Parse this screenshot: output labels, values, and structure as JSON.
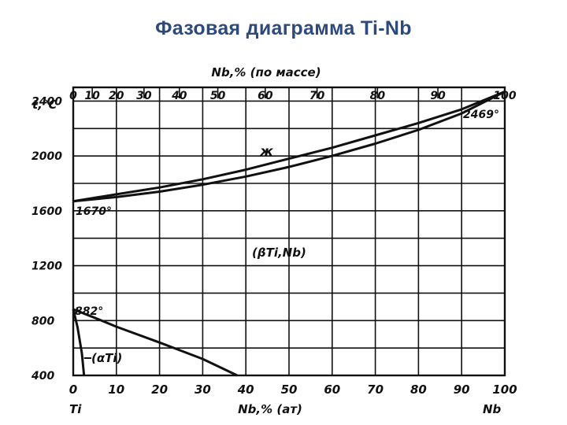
{
  "slide": {
    "title": "Фазовая диаграмма Ti-Nb"
  },
  "diagram": {
    "top_axis_title": "Nb,% (по массе)",
    "top_ticks": [
      "0",
      "10",
      "20",
      "30",
      "40",
      "50",
      "60",
      "70",
      "80",
      "90",
      "100"
    ],
    "top_tick_positions_at": [
      0,
      4.4,
      10,
      16.4,
      24.6,
      33.5,
      44.5,
      56.5,
      70.5,
      84.5,
      100
    ],
    "left_axis_title": "t,°C",
    "left_ticks": [
      "2400",
      "2000",
      "1600",
      "1200",
      "800",
      "400"
    ],
    "bottom_ticks": [
      "0",
      "10",
      "20",
      "30",
      "40",
      "50",
      "60",
      "70",
      "80",
      "90",
      "100"
    ],
    "bottom_axis_title": "Nb,% (ат)",
    "bottom_left_element": "Ti",
    "bottom_right_element": "Nb",
    "labels": {
      "ti_melting": "1670°",
      "nb_melting": "2469°",
      "ti_transition": "882°",
      "liquid": "ж",
      "beta_solid_solution": "(βTi,Nb)",
      "alpha_phase": "(αTi)"
    }
  },
  "chart_data": {
    "type": "line",
    "x_unit": "Nb, at.%",
    "y_unit": "t, °C",
    "xlim": [
      0,
      100
    ],
    "ylim": [
      400,
      2500
    ],
    "grid": true,
    "series": [
      {
        "name": "liquidus",
        "x": [
          0,
          10,
          20,
          30,
          40,
          50,
          60,
          70,
          80,
          90,
          100
        ],
        "y": [
          1670,
          1720,
          1770,
          1830,
          1900,
          1980,
          2060,
          2150,
          2240,
          2340,
          2469
        ]
      },
      {
        "name": "solidus",
        "x": [
          0,
          10,
          20,
          30,
          40,
          50,
          60,
          70,
          80,
          90,
          100
        ],
        "y": [
          1670,
          1700,
          1740,
          1790,
          1850,
          1920,
          2000,
          2090,
          2190,
          2310,
          2469
        ]
      },
      {
        "name": "beta-transus",
        "x": [
          0,
          5,
          10,
          20,
          30,
          38
        ],
        "y": [
          882,
          820,
          755,
          640,
          520,
          400
        ]
      },
      {
        "name": "alpha-solvus",
        "x": [
          0,
          1,
          2,
          2.5
        ],
        "y": [
          882,
          750,
          560,
          400
        ]
      }
    ]
  }
}
